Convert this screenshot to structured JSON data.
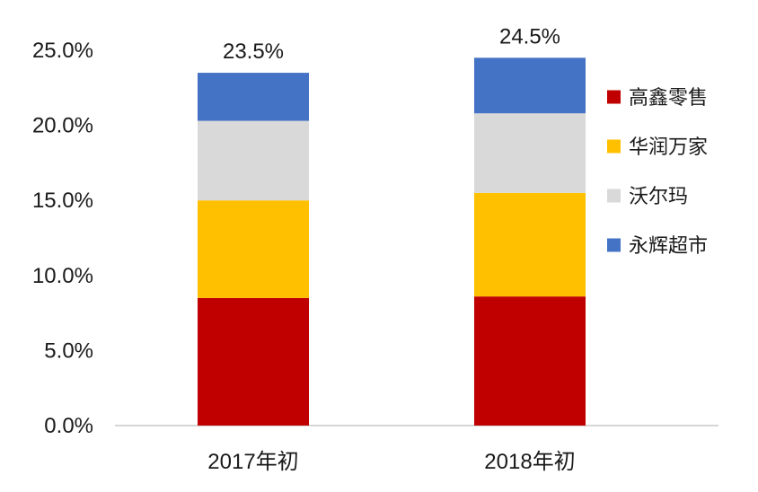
{
  "chart_data": {
    "type": "bar",
    "stacked": true,
    "categories": [
      "2017年初",
      "2018年初"
    ],
    "series": [
      {
        "name": "高鑫零售",
        "values": [
          8.5,
          8.6
        ],
        "color": "#C00000"
      },
      {
        "name": "华润万家",
        "values": [
          6.5,
          6.9
        ],
        "color": "#FFC000"
      },
      {
        "name": "沃尔玛",
        "values": [
          5.3,
          5.3
        ],
        "color": "#D9D9D9"
      },
      {
        "name": "永辉超市",
        "values": [
          3.2,
          3.7
        ],
        "color": "#4472C4"
      }
    ],
    "totals": [
      "23.5%",
      "24.5%"
    ],
    "y_ticks": [
      "0.0%",
      "5.0%",
      "10.0%",
      "15.0%",
      "20.0%",
      "25.0%"
    ],
    "ylim": [
      0,
      25
    ],
    "legend_position": "right",
    "title": "",
    "xlabel": "",
    "ylabel": ""
  }
}
